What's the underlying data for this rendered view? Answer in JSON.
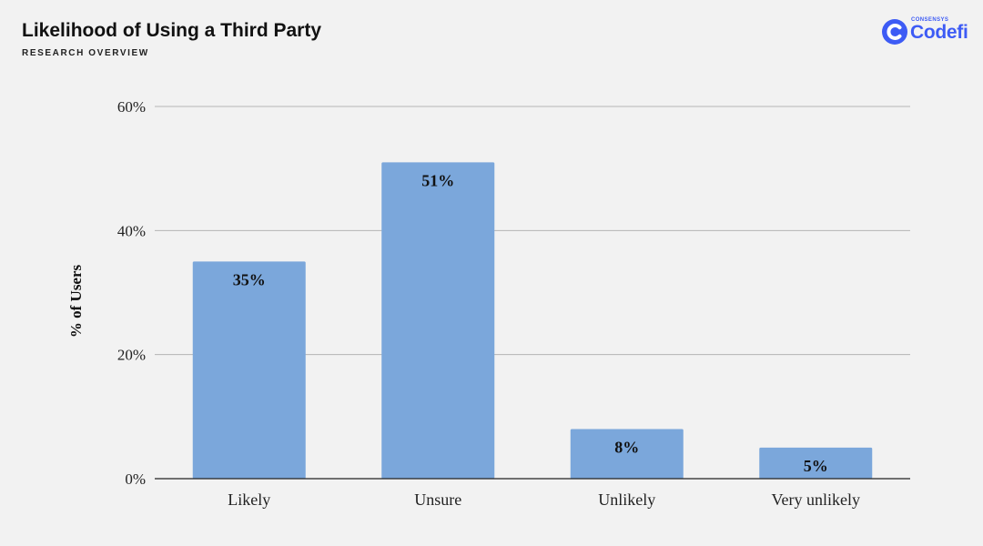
{
  "header": {
    "title": "Likelihood of Using a Third Party",
    "subtitle": "RESEARCH OVERVIEW"
  },
  "logo": {
    "small_text": "CONSENSYS",
    "name": "Codefi",
    "color": "#3d5bf5"
  },
  "chart_data": {
    "type": "bar",
    "categories": [
      "Likely",
      "Unsure",
      "Unlikely",
      "Very unlikely"
    ],
    "values": [
      35,
      51,
      8,
      5
    ],
    "data_labels": [
      "35%",
      "51%",
      "8%",
      "5%"
    ],
    "ylabel": "% of Users",
    "xlabel": "",
    "ylim": [
      0,
      60
    ],
    "yticks": [
      0,
      20,
      40,
      60
    ],
    "ytick_labels": [
      "0%",
      "20%",
      "40%",
      "60%"
    ],
    "grid": true,
    "bar_color": "#7ba7db"
  }
}
